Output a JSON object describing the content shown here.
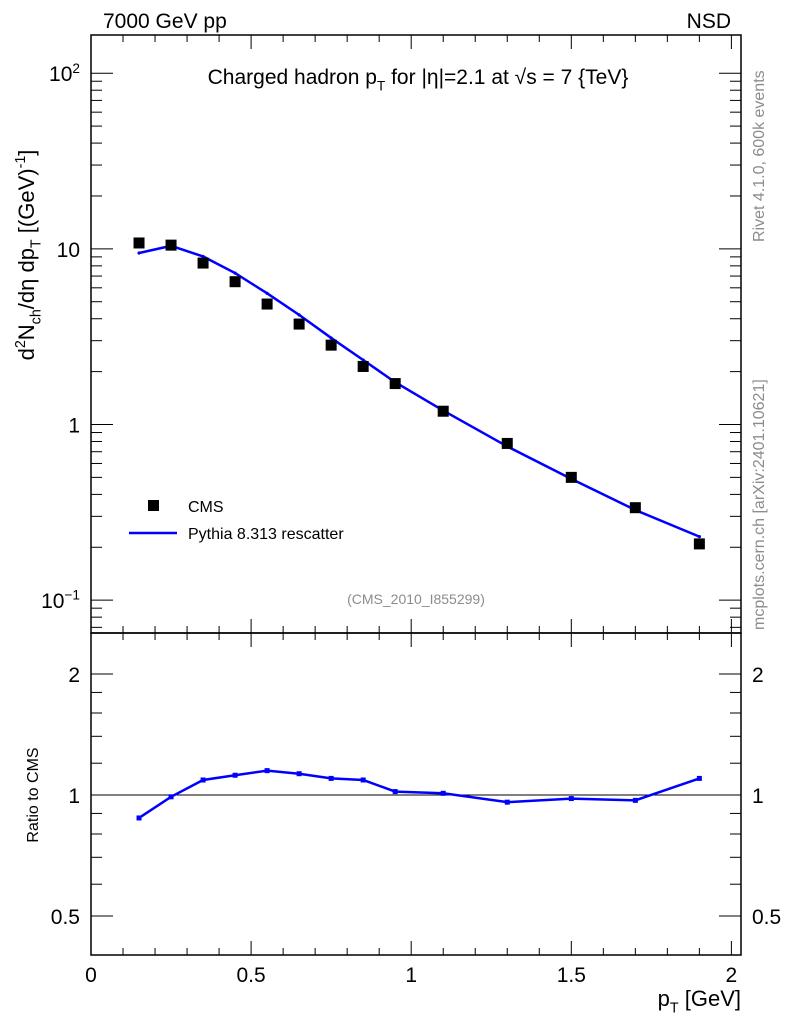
{
  "chart_data": [
    {
      "type": "scatter",
      "panel": "main",
      "title": "Charged hadron p_{T} for |η|=2.1 at √s = 7 {TeV}",
      "ylabel": "d^{2}N_{ch}/dη dp_{T} [(GeV)^{-1}]",
      "xlabel": "p_{T} [GeV]",
      "yscale": "log",
      "ylim": [
        0.065,
        165
      ],
      "xlim": [
        0,
        2.03
      ],
      "yticks": [
        {
          "v": 100,
          "label": "10^{2}"
        },
        {
          "v": 10,
          "label": "10"
        },
        {
          "v": 1,
          "label": "1"
        },
        {
          "v": 0.1,
          "label": "10^{−1}"
        }
      ],
      "legend_placement": "bottom-left",
      "series": [
        {
          "name": "CMS",
          "style": "markers",
          "color": "#000000",
          "x": [
            0.15,
            0.25,
            0.35,
            0.45,
            0.55,
            0.65,
            0.75,
            0.85,
            0.95,
            1.1,
            1.3,
            1.5,
            1.7,
            1.9
          ],
          "y": [
            10.8,
            10.5,
            8.3,
            6.5,
            4.85,
            3.73,
            2.83,
            2.14,
            1.71,
            1.19,
            0.78,
            0.5,
            0.336,
            0.209
          ]
        },
        {
          "name": "Pythia 8.313 rescatter",
          "style": "line",
          "color": "#0000ff",
          "x": [
            0.15,
            0.25,
            0.35,
            0.45,
            0.55,
            0.65,
            0.75,
            0.85,
            0.95,
            1.1,
            1.3,
            1.5,
            1.7,
            1.9
          ],
          "y": [
            9.47,
            10.4,
            9.05,
            7.28,
            5.58,
            4.21,
            3.11,
            2.33,
            1.74,
            1.2,
            0.75,
            0.49,
            0.326,
            0.23
          ]
        }
      ]
    },
    {
      "type": "line",
      "panel": "ratio",
      "ylabel": "Ratio to CMS",
      "yscale": "log",
      "ylim": [
        0.4,
        2.53
      ],
      "xlim": [
        0,
        2.03
      ],
      "xticks": [
        0,
        0.5,
        1,
        1.5,
        2
      ],
      "xticklabels": [
        "0",
        "0.5",
        "1",
        "1.5",
        "2"
      ],
      "yticks": [
        0.5,
        1,
        2
      ],
      "yticklabels": [
        "0.5",
        "1",
        "2"
      ],
      "series": [
        {
          "name": "Pythia 8.313 rescatter / CMS",
          "color": "#0000ff",
          "x": [
            0.15,
            0.25,
            0.35,
            0.45,
            0.55,
            0.65,
            0.75,
            0.85,
            0.95,
            1.1,
            1.3,
            1.5,
            1.7,
            1.9
          ],
          "y": [
            0.877,
            0.99,
            1.09,
            1.12,
            1.15,
            1.13,
            1.1,
            1.09,
            1.02,
            1.01,
            0.96,
            0.98,
            0.97,
            1.1
          ]
        }
      ]
    }
  ],
  "header": {
    "left": "7000 GeV pp",
    "right": "NSD"
  },
  "side": {
    "rivet": "Rivet 4.1.0,  600k events",
    "mcplots": "mcplots.cern.ch [arXiv:2401.10621]"
  },
  "analysis_id": "(CMS_2010_I855299)"
}
